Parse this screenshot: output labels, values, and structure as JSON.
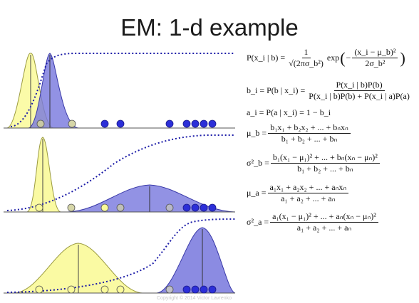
{
  "title": "EM: 1-d example",
  "colors": {
    "class_b": "#7777dd",
    "class_b_edge": "#3a3aa8",
    "class_a": "#fafa99",
    "class_a_edge": "#9b9b40",
    "point_dark": "#2c2fd8",
    "posterior_curve": "#1c1ca8",
    "baseline": "#555555"
  },
  "equations": {
    "likelihood": {
      "lhs": "P(x_i | b) =",
      "coef_num": "1",
      "coef_den": "√(2πσ_b²)",
      "exp_word": "exp",
      "exp_num": "(x_i − μ_b)²",
      "exp_den": "2σ_b²",
      "exp_sign": "−"
    },
    "posterior_b": {
      "lhs": "b_i = P(b | x_i) =",
      "num": "P(x_i | b)P(b)",
      "den": "P(x_i | b)P(b) + P(x_i | a)P(a)"
    },
    "posterior_a": {
      "text": "a_i = P(a | x_i) = 1 − b_i"
    },
    "mu_b": {
      "lhs": "μ_b =",
      "num": "b₁x₁ + b₂x₂ + ... + bₙxₙ",
      "den": "b₁ + b₂ + ... + bₙ"
    },
    "sigma_b": {
      "lhs": "σ²_b =",
      "num": "b₁(x₁ − μ₁)² + ... + bₙ(xₙ − μₙ)²",
      "den": "b₁ + b₂ + ... + bₙ"
    },
    "mu_a": {
      "lhs": "μ_a =",
      "num": "a₁x₁ + a₂x₂ + ... + aₙxₙ",
      "den": "a₁ + a₂ + ... + aₙ"
    },
    "sigma_a": {
      "lhs": "σ²_a =",
      "num": "a₁(x₁ − μ₁)² + ... + aₙ(xₙ − μₙ)²",
      "den": "a₁ + a₂ + ... + aₙ"
    }
  },
  "footer": "Copyright © 2014 Victor Lavrenko"
}
